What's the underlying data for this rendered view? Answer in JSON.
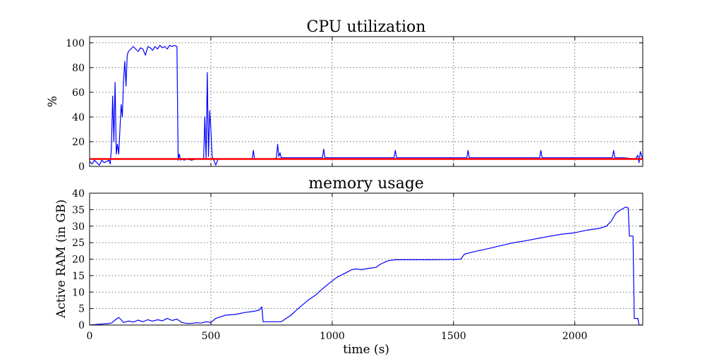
{
  "chart_data": [
    {
      "type": "line",
      "title": "CPU utilization",
      "xlabel": "",
      "ylabel": "%",
      "xlim": [
        0,
        2280
      ],
      "ylim": [
        0,
        105
      ],
      "xticks": [
        0,
        500,
        1000,
        1500,
        2000
      ],
      "yticks": [
        0,
        20,
        40,
        60,
        80,
        100
      ],
      "ytick_labels": [
        "0",
        "20",
        "40",
        "60",
        "80",
        "100"
      ],
      "grid": true,
      "series": [
        {
          "name": "",
          "color": "#0000ff",
          "points": [
            [
              0,
              4
            ],
            [
              10,
              2
            ],
            [
              20,
              5
            ],
            [
              30,
              3
            ],
            [
              40,
              1
            ],
            [
              50,
              5
            ],
            [
              60,
              3
            ],
            [
              70,
              4
            ],
            [
              80,
              5
            ],
            [
              85,
              2
            ],
            [
              90,
              15
            ],
            [
              95,
              57
            ],
            [
              100,
              20
            ],
            [
              105,
              68
            ],
            [
              110,
              10
            ],
            [
              115,
              18
            ],
            [
              120,
              10
            ],
            [
              125,
              30
            ],
            [
              130,
              50
            ],
            [
              135,
              40
            ],
            [
              140,
              70
            ],
            [
              145,
              85
            ],
            [
              150,
              65
            ],
            [
              155,
              90
            ],
            [
              160,
              93
            ],
            [
              170,
              95
            ],
            [
              180,
              97
            ],
            [
              190,
              95
            ],
            [
              200,
              93
            ],
            [
              210,
              96
            ],
            [
              220,
              95
            ],
            [
              230,
              90
            ],
            [
              240,
              97
            ],
            [
              250,
              96
            ],
            [
              260,
              94
            ],
            [
              270,
              97
            ],
            [
              280,
              95
            ],
            [
              290,
              98
            ],
            [
              300,
              96
            ],
            [
              310,
              97
            ],
            [
              320,
              95
            ],
            [
              330,
              98
            ],
            [
              340,
              97
            ],
            [
              350,
              98
            ],
            [
              360,
              97
            ],
            [
              365,
              5
            ],
            [
              370,
              10
            ],
            [
              375,
              5
            ],
            [
              380,
              6
            ],
            [
              390,
              5
            ],
            [
              400,
              6
            ],
            [
              420,
              5
            ],
            [
              440,
              6
            ],
            [
              460,
              6
            ],
            [
              470,
              6
            ],
            [
              475,
              40
            ],
            [
              480,
              6
            ],
            [
              485,
              76
            ],
            [
              490,
              8
            ],
            [
              495,
              45
            ],
            [
              500,
              30
            ],
            [
              505,
              8
            ],
            [
              510,
              6
            ],
            [
              520,
              1
            ],
            [
              530,
              6
            ],
            [
              560,
              6
            ],
            [
              600,
              6
            ],
            [
              650,
              6
            ],
            [
              670,
              6
            ],
            [
              675,
              13
            ],
            [
              680,
              6
            ],
            [
              700,
              6
            ],
            [
              730,
              6
            ],
            [
              760,
              6
            ],
            [
              770,
              7
            ],
            [
              775,
              18
            ],
            [
              780,
              8
            ],
            [
              785,
              11
            ],
            [
              790,
              7
            ],
            [
              800,
              7
            ],
            [
              850,
              7
            ],
            [
              900,
              7
            ],
            [
              960,
              7
            ],
            [
              965,
              14
            ],
            [
              970,
              7
            ],
            [
              1000,
              7
            ],
            [
              1050,
              7
            ],
            [
              1100,
              7
            ],
            [
              1150,
              7
            ],
            [
              1200,
              7
            ],
            [
              1255,
              7
            ],
            [
              1260,
              13
            ],
            [
              1265,
              7
            ],
            [
              1300,
              7
            ],
            [
              1400,
              7
            ],
            [
              1500,
              7
            ],
            [
              1555,
              7
            ],
            [
              1560,
              13
            ],
            [
              1565,
              7
            ],
            [
              1600,
              7
            ],
            [
              1700,
              7
            ],
            [
              1800,
              7
            ],
            [
              1855,
              7
            ],
            [
              1860,
              13
            ],
            [
              1865,
              7
            ],
            [
              1900,
              7
            ],
            [
              2000,
              7
            ],
            [
              2100,
              7
            ],
            [
              2155,
              7
            ],
            [
              2160,
              13
            ],
            [
              2165,
              7
            ],
            [
              2200,
              7
            ],
            [
              2250,
              6
            ],
            [
              2260,
              9
            ],
            [
              2265,
              3
            ],
            [
              2270,
              12
            ],
            [
              2280,
              6
            ]
          ]
        },
        {
          "name": "",
          "color": "#ff0000",
          "points": [
            [
              0,
              6
            ],
            [
              2280,
              6
            ]
          ]
        }
      ]
    },
    {
      "type": "line",
      "title": "memory usage",
      "xlabel": "time (s)",
      "ylabel": "Active RAM (in GB)",
      "xlim": [
        0,
        2280
      ],
      "ylim": [
        0,
        40
      ],
      "xticks": [
        0,
        500,
        1000,
        1500,
        2000
      ],
      "xtick_labels": [
        "0",
        "500",
        "1000",
        "1500",
        "2000"
      ],
      "yticks": [
        0,
        5,
        10,
        15,
        20,
        25,
        30,
        35,
        40
      ],
      "ytick_labels": [
        "0",
        "5",
        "10",
        "15",
        "20",
        "25",
        "30",
        "35",
        "40"
      ],
      "grid": true,
      "series": [
        {
          "name": "",
          "color": "#0000ff",
          "points": [
            [
              0,
              0
            ],
            [
              30,
              0.2
            ],
            [
              70,
              0.4
            ],
            [
              90,
              0.6
            ],
            [
              100,
              1.2
            ],
            [
              110,
              1.8
            ],
            [
              120,
              2.3
            ],
            [
              130,
              1.6
            ],
            [
              140,
              0.8
            ],
            [
              160,
              1.2
            ],
            [
              180,
              0.9
            ],
            [
              200,
              1.5
            ],
            [
              220,
              1.0
            ],
            [
              240,
              1.6
            ],
            [
              260,
              1.2
            ],
            [
              280,
              1.6
            ],
            [
              300,
              1.3
            ],
            [
              320,
              2.0
            ],
            [
              340,
              1.4
            ],
            [
              360,
              1.8
            ],
            [
              380,
              0.8
            ],
            [
              400,
              0.5
            ],
            [
              420,
              0.5
            ],
            [
              440,
              0.7
            ],
            [
              460,
              0.6
            ],
            [
              480,
              1.0
            ],
            [
              500,
              0.8
            ],
            [
              520,
              2.0
            ],
            [
              540,
              2.5
            ],
            [
              560,
              3.0
            ],
            [
              600,
              3.2
            ],
            [
              640,
              3.8
            ],
            [
              680,
              4.2
            ],
            [
              700,
              4.6
            ],
            [
              710,
              5.5
            ],
            [
              715,
              1.0
            ],
            [
              730,
              1.0
            ],
            [
              760,
              1.0
            ],
            [
              790,
              1.0
            ],
            [
              800,
              1.5
            ],
            [
              830,
              3.0
            ],
            [
              860,
              5.0
            ],
            [
              900,
              7.5
            ],
            [
              930,
              9.0
            ],
            [
              960,
              11.0
            ],
            [
              990,
              12.8
            ],
            [
              1020,
              14.5
            ],
            [
              1060,
              16.0
            ],
            [
              1080,
              16.8
            ],
            [
              1100,
              17.0
            ],
            [
              1120,
              16.8
            ],
            [
              1150,
              17.2
            ],
            [
              1180,
              17.5
            ],
            [
              1200,
              18.5
            ],
            [
              1230,
              19.5
            ],
            [
              1260,
              19.8
            ],
            [
              1300,
              19.8
            ],
            [
              1400,
              19.8
            ],
            [
              1500,
              19.9
            ],
            [
              1530,
              20.0
            ],
            [
              1545,
              21.5
            ],
            [
              1560,
              21.8
            ],
            [
              1600,
              22.5
            ],
            [
              1650,
              23.3
            ],
            [
              1700,
              24.2
            ],
            [
              1750,
              25.0
            ],
            [
              1800,
              25.6
            ],
            [
              1850,
              26.3
            ],
            [
              1900,
              27.0
            ],
            [
              1950,
              27.6
            ],
            [
              2000,
              28.0
            ],
            [
              2050,
              28.8
            ],
            [
              2100,
              29.3
            ],
            [
              2130,
              30.0
            ],
            [
              2150,
              31.5
            ],
            [
              2170,
              34.0
            ],
            [
              2190,
              35.0
            ],
            [
              2210,
              35.8
            ],
            [
              2220,
              35.5
            ],
            [
              2225,
              27.0
            ],
            [
              2240,
              27.0
            ],
            [
              2245,
              2.0
            ],
            [
              2260,
              2.0
            ],
            [
              2265,
              0
            ],
            [
              2280,
              0
            ]
          ]
        }
      ]
    }
  ]
}
